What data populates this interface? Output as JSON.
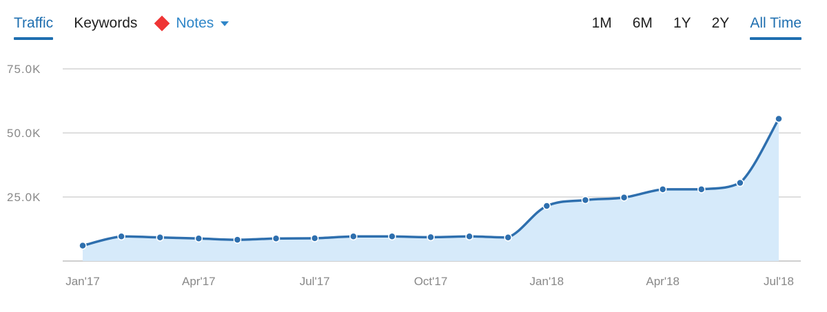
{
  "header": {
    "tabs": [
      {
        "label": "Traffic",
        "active": true
      },
      {
        "label": "Keywords",
        "active": false
      }
    ],
    "notes_label": "Notes",
    "notes_marker_color": "#ef3535",
    "ranges": [
      {
        "label": "1M",
        "active": false
      },
      {
        "label": "6M",
        "active": false
      },
      {
        "label": "1Y",
        "active": false
      },
      {
        "label": "2Y",
        "active": false
      },
      {
        "label": "All Time",
        "active": true
      }
    ],
    "accent_color": "#1f6fb0"
  },
  "chart_data": {
    "type": "area",
    "title": "",
    "xlabel": "",
    "ylabel": "",
    "x": [
      "2017-01",
      "2017-02",
      "2017-03",
      "2017-04",
      "2017-05",
      "2017-06",
      "2017-07",
      "2017-08",
      "2017-09",
      "2017-10",
      "2017-11",
      "2017-12",
      "2018-01",
      "2018-02",
      "2018-03",
      "2018-04",
      "2018-05",
      "2018-06",
      "2018-07"
    ],
    "series": [
      {
        "values": [
          6000,
          9600,
          9200,
          8800,
          8300,
          8800,
          8900,
          9600,
          9600,
          9300,
          9600,
          9200,
          21500,
          23800,
          24800,
          28000,
          28000,
          30500,
          55500
        ],
        "line_color": "#2e6fae",
        "fill_color": "#d6eafa"
      }
    ],
    "ylim": [
      0,
      75000
    ],
    "yticks": [
      {
        "value": 25000,
        "label": "25.0K"
      },
      {
        "value": 50000,
        "label": "50.0K"
      },
      {
        "value": 75000,
        "label": "75.0K"
      }
    ],
    "xticks": [
      {
        "index": 0,
        "label": "Jan'17"
      },
      {
        "index": 3,
        "label": "Apr'17"
      },
      {
        "index": 6,
        "label": "Jul'17"
      },
      {
        "index": 9,
        "label": "Oct'17"
      },
      {
        "index": 12,
        "label": "Jan'18"
      },
      {
        "index": 15,
        "label": "Apr'18"
      },
      {
        "index": 18,
        "label": "Jul'18"
      }
    ],
    "grid": true,
    "legend": "none"
  }
}
